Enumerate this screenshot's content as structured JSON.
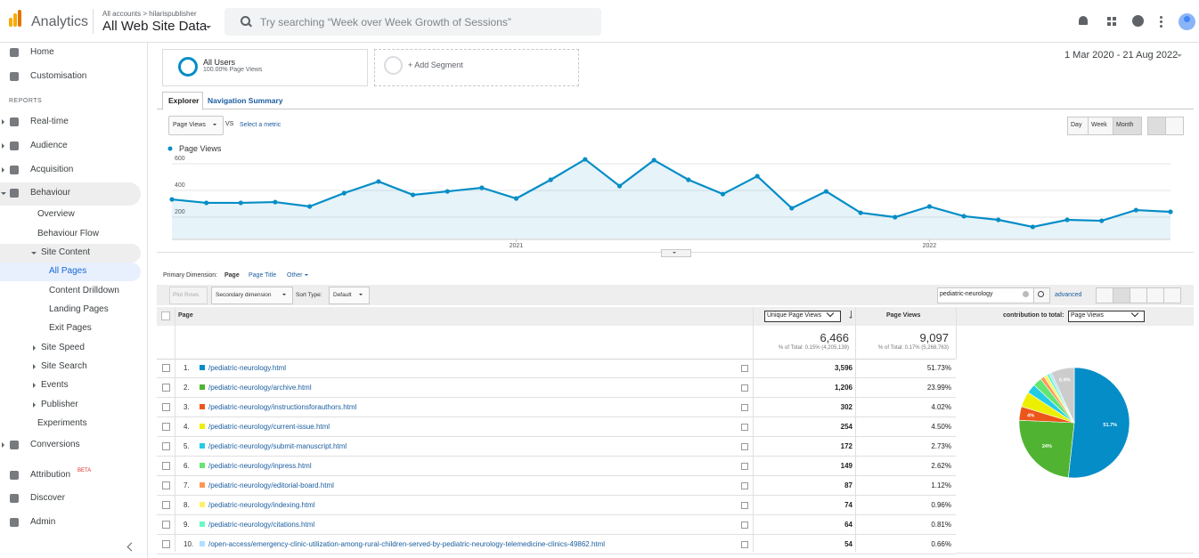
{
  "header": {
    "product": "Analytics",
    "breadcrumb": "All accounts > hilarispublisher",
    "property": "All Web Site Data",
    "search_placeholder": "Try searching “Week over Week Growth of Sessions”"
  },
  "sidebar": {
    "top": [
      "Home",
      "Customisation"
    ],
    "section": "REPORTS",
    "reports": [
      "Real-time",
      "Audience",
      "Acquisition",
      "Behaviour"
    ],
    "behaviour": [
      "Overview",
      "Behaviour Flow",
      "Site Content"
    ],
    "site_content": [
      "All Pages",
      "Content Drilldown",
      "Landing Pages",
      "Exit Pages"
    ],
    "behaviour_more": [
      "Site Speed",
      "Site Search",
      "Events",
      "Publisher",
      "Experiments"
    ],
    "conversions": "Conversions",
    "footer": [
      "Attribution",
      "Discover",
      "Admin"
    ],
    "beta": "BETA"
  },
  "segments": {
    "name": "All Users",
    "detail": "100.00% Page Views",
    "add": "+ Add Segment",
    "date_range": "1 Mar 2020 - 21 Aug 2022"
  },
  "tabs": [
    "Explorer",
    "Navigation Summary"
  ],
  "explorer": {
    "metric": "Page Views",
    "vs": "VS",
    "select_metric": "Select a metric",
    "periods": [
      "Day",
      "Week",
      "Month"
    ]
  },
  "chart_data": [
    {
      "type": "line",
      "categories": [
        null,
        null,
        null,
        null,
        null,
        null,
        null,
        null,
        null,
        null,
        "2021",
        null,
        null,
        null,
        null,
        null,
        null,
        null,
        null,
        null,
        null,
        null,
        "2022",
        null,
        null,
        null,
        null,
        null,
        null,
        null
      ],
      "series": [
        {
          "name": "Page Views",
          "color": "#058dc7",
          "values": [
            333,
            307,
            307,
            313,
            280,
            380,
            467,
            367,
            393,
            420,
            340,
            480,
            633,
            433,
            627,
            480,
            373,
            507,
            267,
            393,
            233,
            200,
            280,
            207,
            180,
            127,
            180,
            173,
            253,
            240
          ]
        }
      ],
      "ylim": [
        40,
        680
      ],
      "yticks": [
        200,
        400,
        600
      ],
      "grid": true
    },
    {
      "type": "pie",
      "values": [
        51.73,
        23.99,
        4.02,
        4.5,
        2.73,
        2.62,
        1.12,
        0.96,
        0.81,
        0.66,
        6.86
      ],
      "value_labels": [
        "51.7%",
        "24%",
        "4%",
        null,
        null,
        null,
        null,
        null,
        null,
        null,
        "6.9%"
      ],
      "colors": [
        "#058dc7",
        "#50b432",
        "#ed561b",
        "#edef00",
        "#24cbe5",
        "#64e572",
        "#ff9655",
        "#fff263",
        "#6af9c4",
        "#b2deff",
        "#cccccc"
      ]
    }
  ],
  "dimension": {
    "label": "Primary Dimension:",
    "options": [
      "Page",
      "Page Title",
      "Other"
    ]
  },
  "toolbar": {
    "plot_rows": "Plot Rows",
    "secondary": "Secondary dimension",
    "sort_type": "Sort Type:",
    "sort_value": "Default",
    "search": "pediatric-neurology",
    "advanced": "advanced"
  },
  "table": {
    "headers": {
      "page": "Page",
      "unique": "Unique Page Views",
      "views": "Page Views",
      "contribution": "contribution to total:",
      "contribution_metric": "Page Views"
    },
    "totals": {
      "unique": "6,466",
      "unique_note": "% of Total: 0.15% (4,205,139)",
      "views": "9,097",
      "views_note": "% of Total: 0.17% (5,268,763)"
    },
    "rows": [
      {
        "index": "1.",
        "page": "/pediatric-neurology.html",
        "unique": "3,596",
        "views": "51.73%"
      },
      {
        "index": "2.",
        "page": "/pediatric-neurology/archive.html",
        "unique": "1,206",
        "views": "23.99%"
      },
      {
        "index": "3.",
        "page": "/pediatric-neurology/instructionsforauthors.html",
        "unique": "302",
        "views": "4.02%"
      },
      {
        "index": "4.",
        "page": "/pediatric-neurology/current-issue.html",
        "unique": "254",
        "views": "4.50%"
      },
      {
        "index": "5.",
        "page": "/pediatric-neurology/submit-manuscript.html",
        "unique": "172",
        "views": "2.73%"
      },
      {
        "index": "6.",
        "page": "/pediatric-neurology/inpress.html",
        "unique": "149",
        "views": "2.62%"
      },
      {
        "index": "7.",
        "page": "/pediatric-neurology/editorial-board.html",
        "unique": "87",
        "views": "1.12%"
      },
      {
        "index": "8.",
        "page": "/pediatric-neurology/indexing.html",
        "unique": "74",
        "views": "0.96%"
      },
      {
        "index": "9.",
        "page": "/pediatric-neurology/citations.html",
        "unique": "64",
        "views": "0.81%"
      },
      {
        "index": "10.",
        "page": "/open-access/emergency-clinic-utilization-among-rural-children-served-by-pediatric-neurology-telemedicine-clinics-49862.html",
        "unique": "54",
        "views": "0.66%"
      }
    ]
  }
}
